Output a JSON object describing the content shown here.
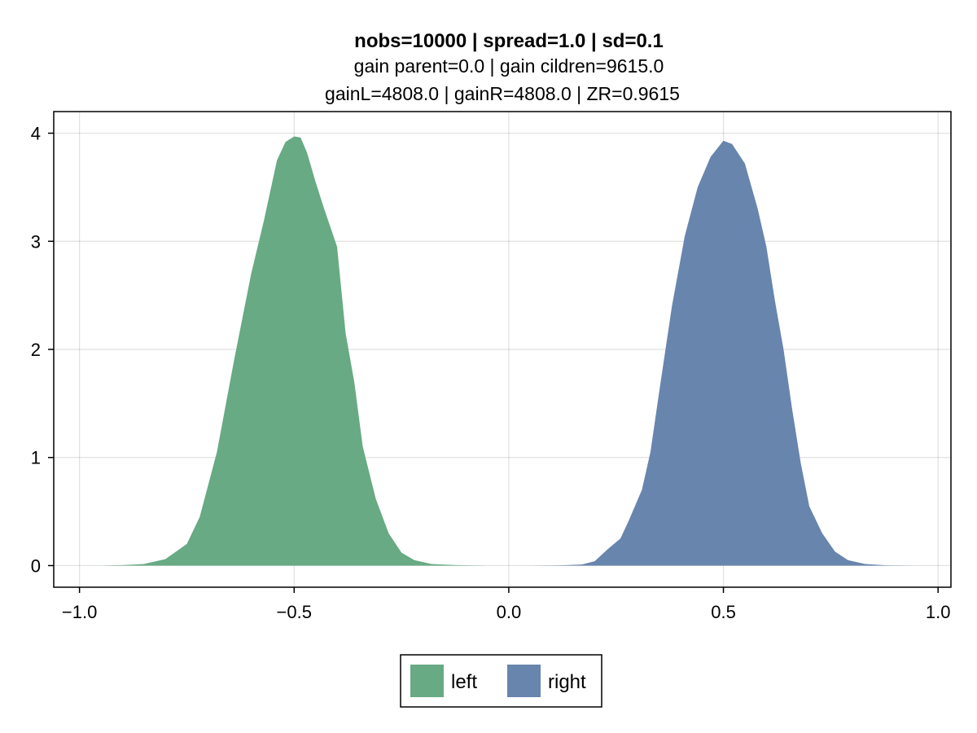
{
  "chart_data": {
    "type": "area",
    "title": "nobs=10000 | spread=1.0 | sd=0.1",
    "subtitle_lines": [
      "gain parent=0.0 | gain cildren=9615.0",
      "gainL=4808.0 | gainR=4808.0 | ZR=0.9615"
    ],
    "xlim": [
      -1.06,
      1.03
    ],
    "ylim": [
      -0.2,
      4.2
    ],
    "x_ticks": [
      -1.0,
      -0.5,
      0.0,
      0.5,
      1.0
    ],
    "x_tick_labels": [
      "−1.0",
      "−0.5",
      "0.0",
      "0.5",
      "1.0"
    ],
    "y_ticks": [
      0,
      1,
      2,
      3,
      4
    ],
    "y_tick_labels": [
      "0",
      "1",
      "2",
      "3",
      "4"
    ],
    "grid": true,
    "legend_position": "bottom",
    "series": [
      {
        "name": "left",
        "color": "#67aa84",
        "points": [
          [
            -0.95,
            0
          ],
          [
            -0.9,
            0.004
          ],
          [
            -0.85,
            0.015
          ],
          [
            -0.8,
            0.06
          ],
          [
            -0.75,
            0.2
          ],
          [
            -0.72,
            0.45
          ],
          [
            -0.68,
            1.05
          ],
          [
            -0.64,
            1.9
          ],
          [
            -0.6,
            2.7
          ],
          [
            -0.57,
            3.2
          ],
          [
            -0.54,
            3.75
          ],
          [
            -0.52,
            3.92
          ],
          [
            -0.5,
            3.97
          ],
          [
            -0.485,
            3.96
          ],
          [
            -0.47,
            3.82
          ],
          [
            -0.45,
            3.55
          ],
          [
            -0.43,
            3.3
          ],
          [
            -0.4,
            2.95
          ],
          [
            -0.38,
            2.15
          ],
          [
            -0.36,
            1.7
          ],
          [
            -0.34,
            1.1
          ],
          [
            -0.31,
            0.62
          ],
          [
            -0.28,
            0.3
          ],
          [
            -0.25,
            0.12
          ],
          [
            -0.22,
            0.05
          ],
          [
            -0.18,
            0.015
          ],
          [
            -0.12,
            0.004
          ],
          [
            -0.05,
            0
          ]
        ]
      },
      {
        "name": "right",
        "color": "#6885ad",
        "points": [
          [
            0.05,
            0
          ],
          [
            0.12,
            0.003
          ],
          [
            0.17,
            0.01
          ],
          [
            0.2,
            0.04
          ],
          [
            0.23,
            0.15
          ],
          [
            0.26,
            0.25
          ],
          [
            0.28,
            0.42
          ],
          [
            0.31,
            0.7
          ],
          [
            0.33,
            1.05
          ],
          [
            0.35,
            1.6
          ],
          [
            0.38,
            2.4
          ],
          [
            0.41,
            3.05
          ],
          [
            0.44,
            3.5
          ],
          [
            0.47,
            3.78
          ],
          [
            0.5,
            3.93
          ],
          [
            0.52,
            3.9
          ],
          [
            0.55,
            3.72
          ],
          [
            0.58,
            3.3
          ],
          [
            0.6,
            2.95
          ],
          [
            0.62,
            2.45
          ],
          [
            0.64,
            2.0
          ],
          [
            0.66,
            1.45
          ],
          [
            0.68,
            0.95
          ],
          [
            0.7,
            0.55
          ],
          [
            0.73,
            0.3
          ],
          [
            0.76,
            0.13
          ],
          [
            0.79,
            0.05
          ],
          [
            0.83,
            0.015
          ],
          [
            0.88,
            0.003
          ],
          [
            0.95,
            0
          ]
        ]
      }
    ]
  }
}
